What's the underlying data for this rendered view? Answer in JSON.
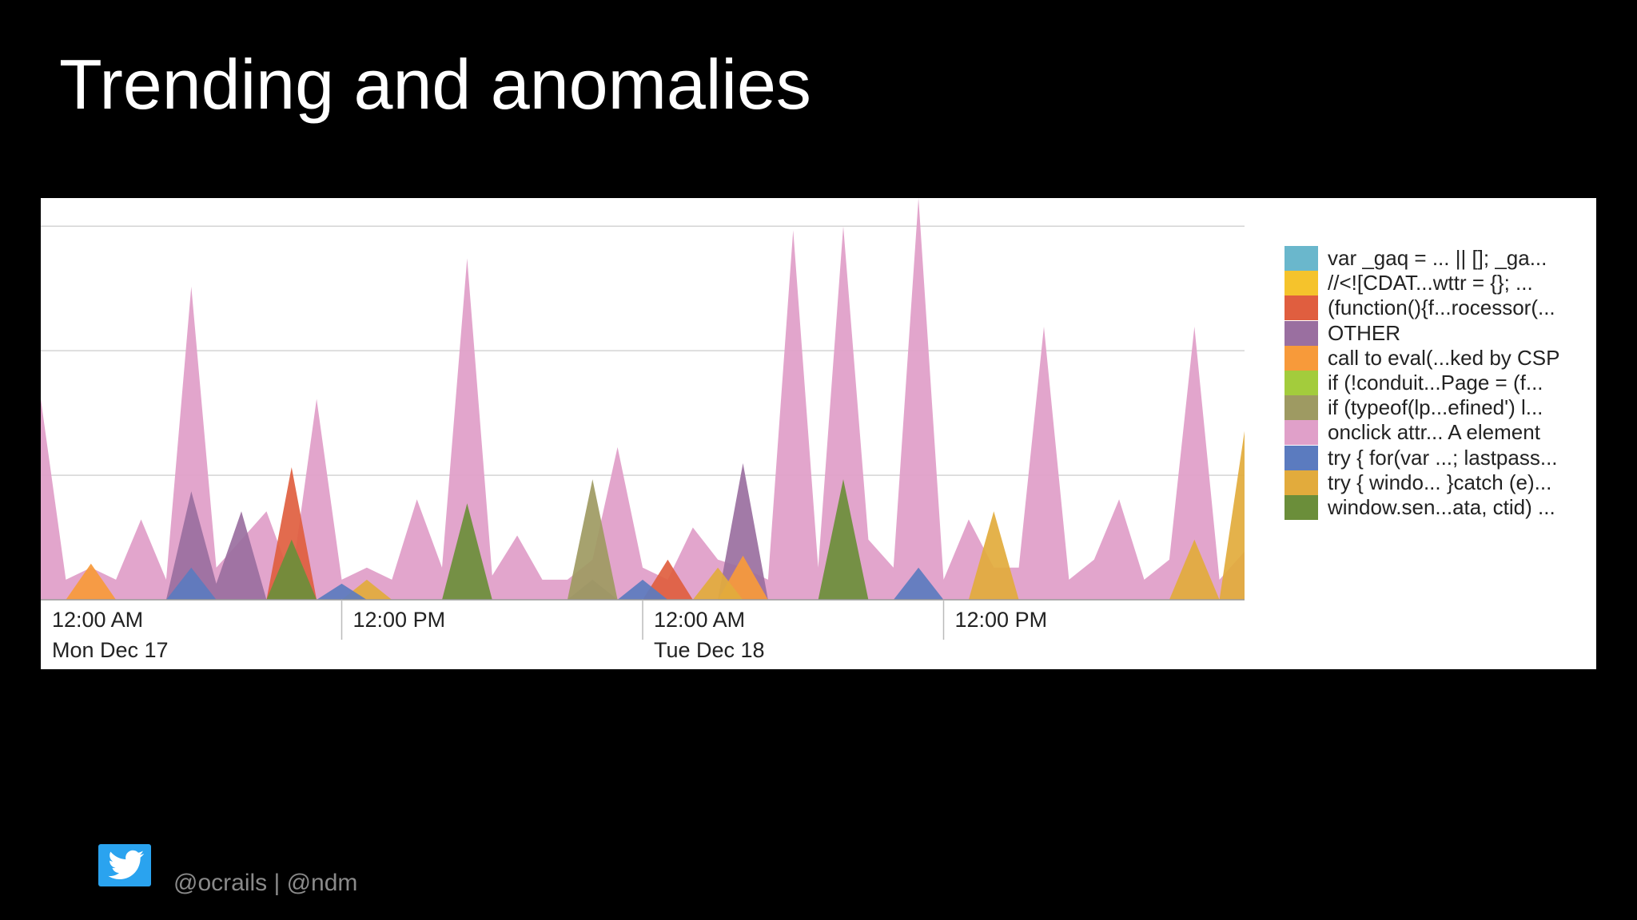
{
  "slide": {
    "title": "Trending and anomalies",
    "footer_handles": "@ocrails | @ndm"
  },
  "icons": {
    "twitter": "twitter-bird-icon"
  },
  "chart_data": {
    "type": "area",
    "title": "",
    "xlabel": "",
    "ylabel": "",
    "grid": true,
    "legend_placement": "right",
    "x": [
      0,
      1,
      2,
      3,
      4,
      5,
      6,
      7,
      8,
      9,
      10,
      11,
      12,
      13,
      14,
      15,
      16,
      17,
      18,
      19,
      20,
      21,
      22,
      23,
      24,
      25,
      26,
      27,
      28,
      29,
      30,
      31,
      32,
      33,
      34,
      35,
      36,
      37,
      38,
      39,
      40,
      41,
      42,
      43,
      44,
      45,
      46,
      47,
      48
    ],
    "x_tick_labels": [
      {
        "x": 0,
        "line1": "12:00 AM",
        "line2": "Mon Dec 17"
      },
      {
        "x": 12,
        "line1": "12:00 PM",
        "line2": ""
      },
      {
        "x": 24,
        "line1": "12:00 AM",
        "line2": "Tue Dec 18"
      },
      {
        "x": 36,
        "line1": "12:00 PM",
        "line2": ""
      }
    ],
    "ylim": [
      0,
      100
    ],
    "series": [
      {
        "name": "var _gaq = ... || []; _ga...",
        "color": "#6ab7cc",
        "values": [
          0,
          0,
          0,
          0,
          0,
          0,
          0,
          0,
          0,
          0,
          0,
          0,
          0,
          0,
          0,
          0,
          0,
          0,
          0,
          0,
          0,
          0,
          0,
          0,
          0,
          0,
          0,
          0,
          0,
          0,
          0,
          0,
          0,
          0,
          0,
          0,
          0,
          0,
          0,
          0,
          0,
          0,
          0,
          0,
          0,
          0,
          0,
          0,
          0
        ]
      },
      {
        "name": "//<![CDAT...wttr = {}; ...",
        "color": "#f5c32c",
        "values": [
          0,
          0,
          0,
          0,
          0,
          0,
          0,
          0,
          0,
          0,
          0,
          0,
          0,
          0,
          0,
          0,
          0,
          0,
          0,
          0,
          0,
          0,
          0,
          0,
          0,
          0,
          0,
          0,
          0,
          0,
          0,
          0,
          0,
          0,
          0,
          0,
          0,
          0,
          0,
          0,
          0,
          0,
          0,
          0,
          0,
          0,
          0,
          0,
          0
        ]
      },
      {
        "name": "(function(){f...rocessor(...",
        "color": "#e05e3f",
        "values": [
          0,
          0,
          0,
          0,
          0,
          0,
          0,
          0,
          0,
          0,
          33,
          0,
          0,
          0,
          0,
          0,
          0,
          0,
          0,
          0,
          0,
          0,
          0,
          0,
          0,
          10,
          0,
          0,
          0,
          0,
          0,
          0,
          0,
          0,
          0,
          0,
          0,
          0,
          0,
          0,
          0,
          0,
          0,
          0,
          0,
          0,
          0,
          0,
          0
        ]
      },
      {
        "name": "OTHER",
        "color": "#9a6fa0",
        "values": [
          0,
          0,
          0,
          0,
          0,
          0,
          27,
          4,
          22,
          0,
          0,
          0,
          0,
          0,
          0,
          0,
          0,
          0,
          0,
          0,
          0,
          0,
          5,
          0,
          0,
          0,
          0,
          0,
          34,
          0,
          0,
          0,
          0,
          0,
          0,
          0,
          0,
          0,
          0,
          0,
          0,
          0,
          0,
          0,
          0,
          0,
          0,
          0,
          0
        ]
      },
      {
        "name": "call to eval(...ked by CSP",
        "color": "#f79a3a",
        "values": [
          0,
          0,
          9,
          0,
          0,
          0,
          0,
          0,
          0,
          0,
          0,
          0,
          0,
          0,
          0,
          0,
          0,
          0,
          0,
          0,
          0,
          0,
          0,
          0,
          0,
          0,
          0,
          0,
          11,
          0,
          0,
          0,
          0,
          0,
          0,
          0,
          0,
          0,
          0,
          0,
          0,
          0,
          0,
          0,
          0,
          0,
          0,
          0,
          0
        ]
      },
      {
        "name": "if (!conduit...Page = (f...",
        "color": "#a3cc3c",
        "values": [
          0,
          0,
          0,
          0,
          0,
          0,
          0,
          0,
          0,
          0,
          0,
          0,
          0,
          0,
          0,
          0,
          0,
          0,
          0,
          0,
          0,
          0,
          0,
          0,
          0,
          0,
          0,
          0,
          0,
          0,
          0,
          0,
          0,
          0,
          0,
          0,
          0,
          0,
          0,
          0,
          0,
          0,
          0,
          0,
          0,
          0,
          0,
          0,
          0
        ]
      },
      {
        "name": "if (typeof(lp...efined') l...",
        "color": "#9e9a62",
        "values": [
          0,
          0,
          0,
          0,
          0,
          0,
          0,
          0,
          0,
          0,
          0,
          0,
          0,
          0,
          0,
          0,
          0,
          0,
          0,
          0,
          0,
          0,
          30,
          0,
          0,
          0,
          0,
          0,
          0,
          0,
          0,
          0,
          0,
          0,
          0,
          0,
          0,
          0,
          0,
          0,
          0,
          0,
          0,
          0,
          0,
          0,
          0,
          0,
          0
        ]
      },
      {
        "name": "onclick attr... A element",
        "color": "#e0a0c9",
        "values": [
          50,
          5,
          8,
          5,
          20,
          5,
          78,
          8,
          15,
          22,
          5,
          50,
          5,
          8,
          5,
          25,
          8,
          85,
          6,
          16,
          5,
          5,
          10,
          38,
          8,
          5,
          18,
          10,
          8,
          5,
          92,
          8,
          93,
          15,
          8,
          100,
          5,
          20,
          8,
          8,
          68,
          5,
          10,
          25,
          5,
          10,
          68,
          5,
          12
        ]
      },
      {
        "name": "try { for(var ...; lastpass...",
        "color": "#5b7bbf",
        "values": [
          0,
          0,
          0,
          0,
          0,
          0,
          8,
          0,
          0,
          0,
          0,
          0,
          4,
          0,
          0,
          0,
          0,
          0,
          0,
          0,
          0,
          0,
          0,
          0,
          5,
          0,
          0,
          0,
          0,
          0,
          0,
          0,
          0,
          0,
          0,
          8,
          0,
          0,
          0,
          0,
          0,
          0,
          0,
          0,
          0,
          0,
          0,
          0,
          0
        ]
      },
      {
        "name": "try { windo... }catch (e)...",
        "color": "#e2ab3c",
        "values": [
          0,
          0,
          0,
          0,
          0,
          0,
          0,
          0,
          0,
          0,
          0,
          0,
          0,
          5,
          0,
          0,
          0,
          0,
          0,
          0,
          0,
          0,
          0,
          0,
          0,
          0,
          0,
          8,
          0,
          0,
          0,
          0,
          0,
          0,
          0,
          0,
          0,
          0,
          22,
          0,
          0,
          0,
          0,
          0,
          0,
          0,
          15,
          0,
          42
        ]
      },
      {
        "name": "window.sen...ata, ctid) ...",
        "color": "#6b8e3a",
        "values": [
          0,
          0,
          0,
          0,
          0,
          0,
          0,
          0,
          0,
          0,
          15,
          0,
          0,
          0,
          0,
          0,
          0,
          24,
          0,
          0,
          0,
          0,
          0,
          0,
          0,
          0,
          0,
          0,
          0,
          0,
          0,
          0,
          30,
          0,
          0,
          0,
          0,
          0,
          0,
          0,
          0,
          0,
          0,
          0,
          0,
          0,
          0,
          0,
          0
        ]
      }
    ]
  }
}
